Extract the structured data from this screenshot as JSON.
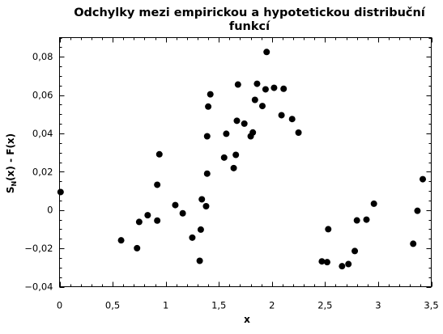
{
  "chart_data": {
    "type": "scatter",
    "title_line1": "Odchylky mezi empirickou a hypotetickou distribuční",
    "title_line2": "funkcí",
    "xlabel": "x",
    "ylabel_main": "S",
    "ylabel_sub": "N",
    "ylabel_rest": "(x) - F(x)",
    "xlim": [
      0,
      3.5
    ],
    "ylim": [
      -0.04,
      0.09
    ],
    "x_ticks": [
      0,
      0.5,
      1,
      1.5,
      2,
      2.5,
      3,
      3.5
    ],
    "x_tick_labels": [
      "0",
      "0,5",
      "1",
      "1,5",
      "2",
      "2,5",
      "3",
      "3,5"
    ],
    "y_ticks": [
      -0.04,
      -0.02,
      0,
      0.02,
      0.04,
      0.06,
      0.08
    ],
    "y_tick_labels": [
      "−0,04",
      "−0,02",
      "0",
      "0,02",
      "0,04",
      "0,06",
      "0,08"
    ],
    "grid": false,
    "legend": "none",
    "point_color": "#000000",
    "points": [
      [
        0.01,
        0.0094
      ],
      [
        0.58,
        -0.0158
      ],
      [
        0.73,
        -0.0199
      ],
      [
        0.75,
        -0.0062
      ],
      [
        0.83,
        -0.0027
      ],
      [
        0.92,
        -0.0055
      ],
      [
        0.92,
        0.0132
      ],
      [
        0.94,
        0.0291
      ],
      [
        1.09,
        0.0026
      ],
      [
        1.16,
        -0.0017
      ],
      [
        1.25,
        -0.0144
      ],
      [
        1.32,
        -0.0265
      ],
      [
        1.33,
        -0.0102
      ],
      [
        1.34,
        0.0056
      ],
      [
        1.38,
        0.002
      ],
      [
        1.39,
        0.019
      ],
      [
        1.39,
        0.0385
      ],
      [
        1.4,
        0.054
      ],
      [
        1.42,
        0.0604
      ],
      [
        1.55,
        0.0274
      ],
      [
        1.57,
        0.0398
      ],
      [
        1.64,
        0.0219
      ],
      [
        1.66,
        0.0288
      ],
      [
        1.67,
        0.0466
      ],
      [
        1.68,
        0.0655
      ],
      [
        1.74,
        0.0451
      ],
      [
        1.8,
        0.0385
      ],
      [
        1.82,
        0.0405
      ],
      [
        1.84,
        0.0575
      ],
      [
        1.86,
        0.0659
      ],
      [
        1.91,
        0.0543
      ],
      [
        1.94,
        0.063
      ],
      [
        1.95,
        0.0825
      ],
      [
        2.02,
        0.0638
      ],
      [
        2.09,
        0.0495
      ],
      [
        2.11,
        0.0633
      ],
      [
        2.19,
        0.0475
      ],
      [
        2.25,
        0.0404
      ],
      [
        2.47,
        -0.0268
      ],
      [
        2.52,
        -0.0272
      ],
      [
        2.53,
        -0.01
      ],
      [
        2.66,
        -0.0293
      ],
      [
        2.72,
        -0.0282
      ],
      [
        2.78,
        -0.0214
      ],
      [
        2.8,
        -0.0054
      ],
      [
        2.89,
        -0.005
      ],
      [
        2.96,
        0.0033
      ],
      [
        3.33,
        -0.0176
      ],
      [
        3.37,
        -0.0004
      ],
      [
        3.42,
        0.0161
      ]
    ]
  }
}
